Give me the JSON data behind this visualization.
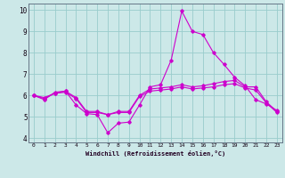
{
  "xlabel": "Windchill (Refroidissement éolien,°C)",
  "background_color": "#cce8e8",
  "grid_color": "#99cccc",
  "line_color": "#cc00cc",
  "xlim": [
    -0.5,
    23.5
  ],
  "ylim": [
    3.8,
    10.3
  ],
  "yticks": [
    4,
    5,
    6,
    7,
    8,
    9,
    10
  ],
  "xticks": [
    0,
    1,
    2,
    3,
    4,
    5,
    6,
    7,
    8,
    9,
    10,
    11,
    12,
    13,
    14,
    15,
    16,
    17,
    18,
    19,
    20,
    21,
    22,
    23
  ],
  "line1_x": [
    0,
    1,
    2,
    3,
    4,
    5,
    6,
    7,
    8,
    9,
    10,
    11,
    12,
    13,
    14,
    15,
    16,
    17,
    18,
    19,
    20,
    21,
    22,
    23
  ],
  "line1_y": [
    6.0,
    5.8,
    6.15,
    6.2,
    5.55,
    5.15,
    5.1,
    4.25,
    4.7,
    4.75,
    5.55,
    6.4,
    6.5,
    7.65,
    9.95,
    9.0,
    8.85,
    8.0,
    7.45,
    6.85,
    6.45,
    5.8,
    5.6,
    5.3
  ],
  "line2_x": [
    0,
    1,
    2,
    3,
    4,
    5,
    6,
    7,
    8,
    9,
    10,
    11,
    12,
    13,
    14,
    15,
    16,
    17,
    18,
    19,
    20,
    21,
    22,
    23
  ],
  "line2_y": [
    6.0,
    5.85,
    6.1,
    6.2,
    5.9,
    5.25,
    5.25,
    5.1,
    5.25,
    5.25,
    6.0,
    6.3,
    6.35,
    6.4,
    6.5,
    6.4,
    6.45,
    6.55,
    6.65,
    6.7,
    6.4,
    6.4,
    5.7,
    5.25
  ],
  "line3_x": [
    0,
    1,
    2,
    3,
    4,
    5,
    6,
    7,
    8,
    9,
    10,
    11,
    12,
    13,
    14,
    15,
    16,
    17,
    18,
    19,
    20,
    21,
    22,
    23
  ],
  "line3_y": [
    6.0,
    5.9,
    6.1,
    6.15,
    5.85,
    5.2,
    5.2,
    5.1,
    5.2,
    5.2,
    5.95,
    6.2,
    6.25,
    6.3,
    6.4,
    6.3,
    6.35,
    6.4,
    6.5,
    6.55,
    6.35,
    6.25,
    5.65,
    5.2
  ]
}
